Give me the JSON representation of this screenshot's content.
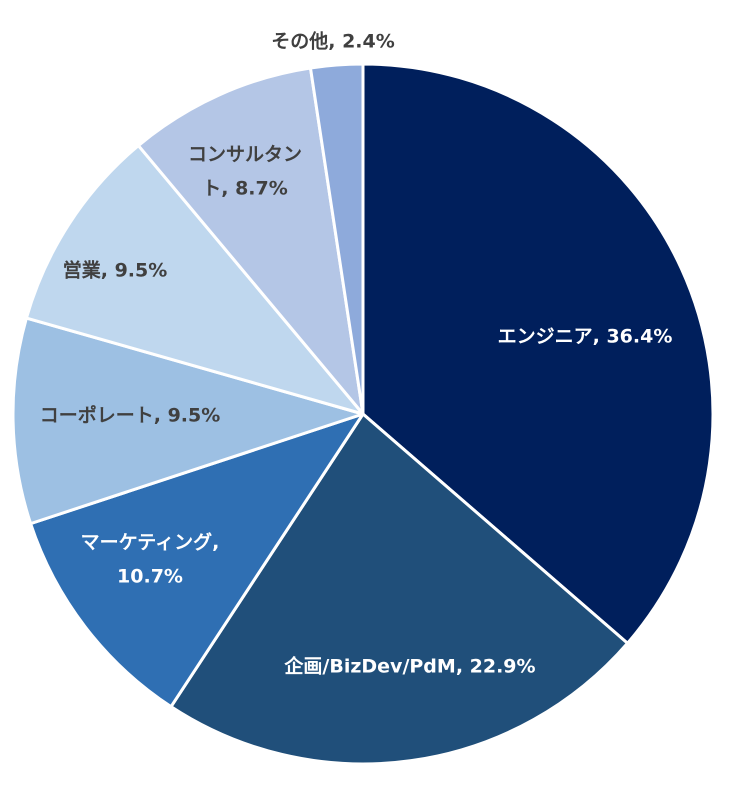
{
  "chart_data": {
    "type": "pie",
    "title": "",
    "slices": [
      {
        "name": "エンジニア",
        "value": 36.4,
        "label_lines": [
          "エンジニア, 36.4%"
        ],
        "color": "#001f5c",
        "text_color": "#ffffff"
      },
      {
        "name": "企画/BizDev/PdM",
        "value": 22.9,
        "label_lines": [
          "企画/BizDev/PdM, 22.9%"
        ],
        "color": "#204f7a",
        "text_color": "#ffffff"
      },
      {
        "name": "マーケティング",
        "value": 10.7,
        "label_lines": [
          "マーケティング,",
          "10.7%"
        ],
        "color": "#2f6fb3",
        "text_color": "#ffffff"
      },
      {
        "name": "コーポレート",
        "value": 9.5,
        "label_lines": [
          "コーポレート, 9.5%"
        ],
        "color": "#9dc0e3",
        "text_color": "#404040"
      },
      {
        "name": "営業",
        "value": 9.5,
        "label_lines": [
          "営業, 9.5%"
        ],
        "color": "#bfd7ee",
        "text_color": "#404040"
      },
      {
        "name": "コンサルタント",
        "value": 8.7,
        "label_lines": [
          "コンサルタン",
          "ト, 8.7%"
        ],
        "color": "#b4c6e6",
        "text_color": "#404040"
      },
      {
        "name": "その他",
        "value": 2.4,
        "label_lines": [
          "その他, 2.4%"
        ],
        "color": "#8eaadb",
        "text_color": "#404040"
      }
    ]
  }
}
